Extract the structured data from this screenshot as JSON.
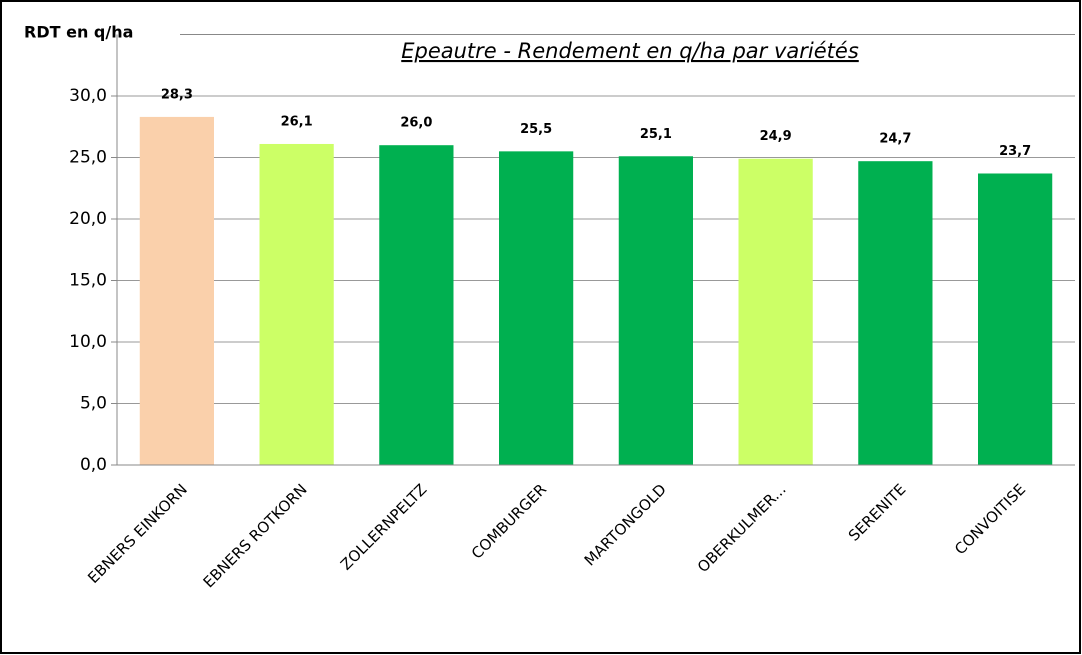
{
  "chart_data": {
    "type": "bar",
    "title": "Epeautre - Rendement en q/ha  par variétés",
    "y_label": "RDT en q/ha",
    "categories": [
      "EBNERS EINKORN",
      "EBNERS ROTKORN",
      "ZOLLERNPELTZ",
      "COMBURGER",
      "MARTONGOLD",
      "OBERKULMER...",
      "SERENITE",
      "CONVOITISE"
    ],
    "values": [
      28.3,
      26.1,
      26.0,
      25.5,
      25.1,
      24.9,
      24.7,
      23.7
    ],
    "value_labels": [
      "28,3",
      "26,1",
      "26,0",
      "25,5",
      "25,1",
      "24,9",
      "24,7",
      "23,7"
    ],
    "colors": [
      "#fad0ab",
      "#ccff66",
      "#00b050",
      "#00b050",
      "#00b050",
      "#ccff66",
      "#00b050",
      "#00b050"
    ],
    "ylim": [
      0,
      35
    ],
    "yticks": [
      {
        "value": 0,
        "label": "0,0"
      },
      {
        "value": 5,
        "label": "5,0"
      },
      {
        "value": 10,
        "label": "10,0"
      },
      {
        "value": 15,
        "label": "15,0"
      },
      {
        "value": 20,
        "label": "20,0"
      },
      {
        "value": 25,
        "label": "25,0"
      },
      {
        "value": 30,
        "label": "30,0"
      }
    ],
    "grid": true
  }
}
